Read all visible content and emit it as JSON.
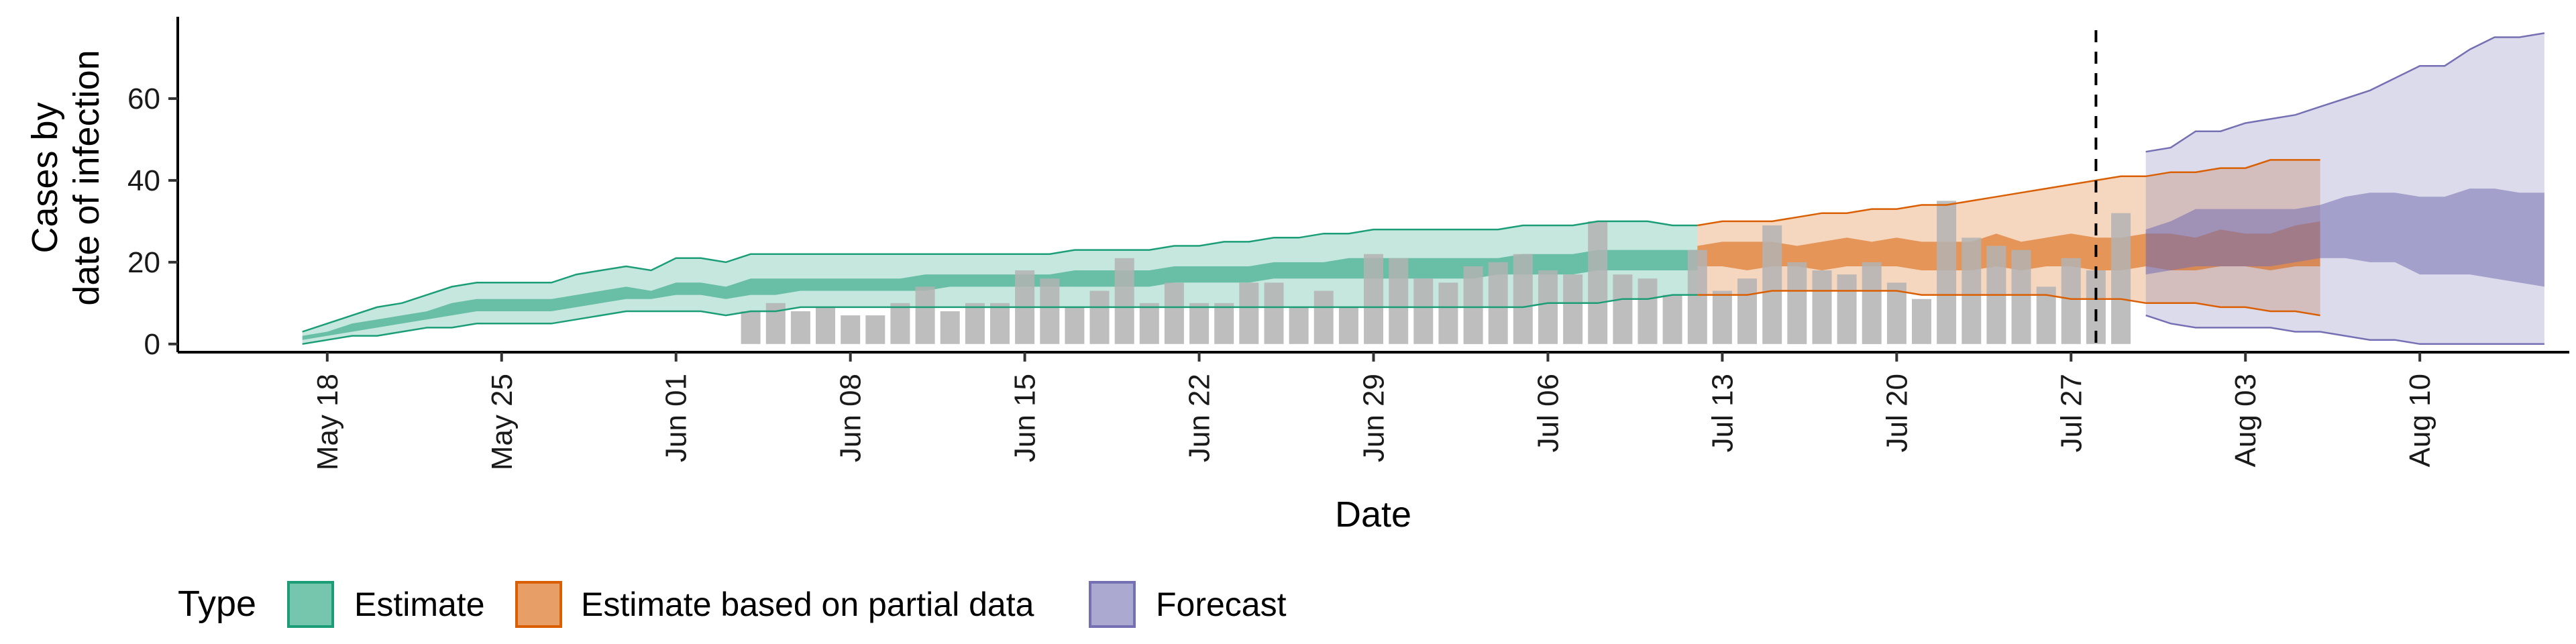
{
  "chart_data": {
    "type": "area",
    "xlabel": "Date",
    "ylabel_lines": [
      "Cases by",
      "date of infection"
    ],
    "ylim": [
      -2,
      80
    ],
    "xlim_days_labels": [
      "May 18",
      "May 25",
      "Jun 01",
      "Jun 08",
      "Jun 15",
      "Jun 22",
      "Jun 29",
      "Jul 06",
      "Jul 13",
      "Jul 20",
      "Jul 27",
      "Aug 03",
      "Aug 10"
    ],
    "x_ticks": [
      "2020-05-18",
      "2020-05-25",
      "2020-06-01",
      "2020-06-08",
      "2020-06-15",
      "2020-06-22",
      "2020-06-29",
      "2020-07-06",
      "2020-07-13",
      "2020-07-20",
      "2020-07-27",
      "2020-08-03",
      "2020-08-10"
    ],
    "y_ticks": [
      0,
      20,
      40,
      60
    ],
    "x_range": [
      "2020-05-12",
      "2020-08-16"
    ],
    "forecast_boundary": "2020-07-28",
    "legend": {
      "title": "Type",
      "position": "bottom",
      "items": [
        {
          "label": "Estimate",
          "color": "#1b9e77"
        },
        {
          "label": "Estimate based on partial data",
          "color": "#d95f02"
        },
        {
          "label": "Forecast",
          "color": "#7570b3"
        }
      ]
    },
    "observed_cases": {
      "color": "#b3b3b3",
      "points": [
        {
          "date": "2020-06-04",
          "value": 8
        },
        {
          "date": "2020-06-05",
          "value": 10
        },
        {
          "date": "2020-06-06",
          "value": 8
        },
        {
          "date": "2020-06-07",
          "value": 9
        },
        {
          "date": "2020-06-08",
          "value": 7
        },
        {
          "date": "2020-06-09",
          "value": 7
        },
        {
          "date": "2020-06-10",
          "value": 10
        },
        {
          "date": "2020-06-11",
          "value": 14
        },
        {
          "date": "2020-06-12",
          "value": 8
        },
        {
          "date": "2020-06-13",
          "value": 10
        },
        {
          "date": "2020-06-14",
          "value": 10
        },
        {
          "date": "2020-06-15",
          "value": 18
        },
        {
          "date": "2020-06-16",
          "value": 16
        },
        {
          "date": "2020-06-17",
          "value": 9
        },
        {
          "date": "2020-06-18",
          "value": 13
        },
        {
          "date": "2020-06-19",
          "value": 21
        },
        {
          "date": "2020-06-20",
          "value": 10
        },
        {
          "date": "2020-06-21",
          "value": 15
        },
        {
          "date": "2020-06-22",
          "value": 10
        },
        {
          "date": "2020-06-23",
          "value": 10
        },
        {
          "date": "2020-06-24",
          "value": 15
        },
        {
          "date": "2020-06-25",
          "value": 15
        },
        {
          "date": "2020-06-26",
          "value": 9
        },
        {
          "date": "2020-06-27",
          "value": 13
        },
        {
          "date": "2020-06-28",
          "value": 9
        },
        {
          "date": "2020-06-29",
          "value": 22
        },
        {
          "date": "2020-06-30",
          "value": 21
        },
        {
          "date": "2020-07-01",
          "value": 16
        },
        {
          "date": "2020-07-02",
          "value": 15
        },
        {
          "date": "2020-07-03",
          "value": 19
        },
        {
          "date": "2020-07-04",
          "value": 20
        },
        {
          "date": "2020-07-05",
          "value": 22
        },
        {
          "date": "2020-07-06",
          "value": 18
        },
        {
          "date": "2020-07-07",
          "value": 17
        },
        {
          "date": "2020-07-08",
          "value": 30
        },
        {
          "date": "2020-07-09",
          "value": 17
        },
        {
          "date": "2020-07-10",
          "value": 16
        },
        {
          "date": "2020-07-11",
          "value": 12
        },
        {
          "date": "2020-07-12",
          "value": 23
        },
        {
          "date": "2020-07-13",
          "value": 13
        },
        {
          "date": "2020-07-14",
          "value": 16
        },
        {
          "date": "2020-07-15",
          "value": 29
        },
        {
          "date": "2020-07-16",
          "value": 20
        },
        {
          "date": "2020-07-17",
          "value": 18
        },
        {
          "date": "2020-07-18",
          "value": 17
        },
        {
          "date": "2020-07-19",
          "value": 20
        },
        {
          "date": "2020-07-20",
          "value": 15
        },
        {
          "date": "2020-07-21",
          "value": 11
        },
        {
          "date": "2020-07-22",
          "value": 35
        },
        {
          "date": "2020-07-23",
          "value": 26
        },
        {
          "date": "2020-07-24",
          "value": 24
        },
        {
          "date": "2020-07-25",
          "value": 23
        },
        {
          "date": "2020-07-26",
          "value": 14
        },
        {
          "date": "2020-07-27",
          "value": 21
        },
        {
          "date": "2020-07-28",
          "value": 18
        },
        {
          "date": "2020-07-29",
          "value": 32
        }
      ]
    },
    "series": [
      {
        "name": "Estimate",
        "color": "#1b9e77",
        "start_date": "2020-05-17",
        "outer_lower": [
          0,
          1,
          2,
          2,
          3,
          4,
          4,
          5,
          5,
          5,
          5,
          6,
          7,
          8,
          8,
          8,
          8,
          7,
          8,
          8,
          9,
          9,
          9,
          9,
          9,
          9,
          9,
          9,
          9,
          9,
          9,
          9,
          9,
          9,
          9,
          9,
          9,
          9,
          9,
          9,
          9,
          9,
          9,
          9,
          9,
          9,
          9,
          9,
          9,
          9,
          10,
          10,
          10,
          11,
          11,
          12,
          12
        ],
        "outer_upper": [
          3,
          5,
          7,
          9,
          10,
          12,
          14,
          15,
          15,
          15,
          15,
          17,
          18,
          19,
          18,
          21,
          21,
          20,
          22,
          22,
          22,
          22,
          22,
          22,
          22,
          22,
          22,
          22,
          22,
          22,
          22,
          23,
          23,
          23,
          23,
          24,
          24,
          25,
          25,
          26,
          26,
          27,
          27,
          28,
          28,
          28,
          28,
          28,
          28,
          29,
          29,
          29,
          30,
          30,
          30,
          29,
          29
        ],
        "inner_lower": [
          1,
          2,
          3,
          4,
          5,
          6,
          7,
          8,
          8,
          8,
          8,
          9,
          10,
          11,
          11,
          12,
          12,
          11,
          12,
          12,
          13,
          13,
          13,
          13,
          13,
          13,
          14,
          14,
          14,
          14,
          14,
          14,
          14,
          14,
          14,
          15,
          15,
          15,
          15,
          16,
          16,
          16,
          16,
          16,
          16,
          16,
          16,
          16,
          17,
          17,
          17,
          17,
          18,
          18,
          18,
          18,
          18
        ],
        "inner_upper": [
          2,
          3,
          5,
          6,
          7,
          8,
          10,
          11,
          11,
          11,
          11,
          12,
          13,
          14,
          13,
          15,
          15,
          14,
          16,
          16,
          16,
          16,
          16,
          16,
          16,
          17,
          17,
          17,
          17,
          17,
          17,
          18,
          18,
          18,
          18,
          19,
          19,
          19,
          19,
          20,
          20,
          20,
          21,
          21,
          21,
          21,
          21,
          21,
          21,
          22,
          22,
          22,
          23,
          23,
          23,
          23,
          23
        ]
      },
      {
        "name": "Estimate based on partial data",
        "color": "#d95f02",
        "start_date": "2020-07-12",
        "outer_lower": [
          12,
          12,
          12,
          13,
          13,
          13,
          13,
          13,
          13,
          12,
          12,
          12,
          12,
          12,
          12,
          11,
          11,
          11,
          10,
          10,
          10,
          9,
          9,
          8,
          8,
          7
        ],
        "outer_upper": [
          29,
          30,
          30,
          30,
          31,
          32,
          32,
          33,
          33,
          34,
          34,
          35,
          36,
          37,
          38,
          39,
          40,
          41,
          41,
          42,
          42,
          43,
          43,
          45,
          45,
          45
        ],
        "inner_lower": [
          19,
          19,
          18,
          19,
          19,
          18,
          19,
          19,
          19,
          18,
          18,
          18,
          19,
          18,
          19,
          19,
          18,
          18,
          19,
          18,
          18,
          19,
          19,
          18,
          19,
          19
        ],
        "inner_upper": [
          24,
          25,
          25,
          25,
          24,
          25,
          26,
          25,
          26,
          25,
          25,
          25,
          27,
          25,
          26,
          27,
          26,
          26,
          27,
          27,
          26,
          28,
          27,
          27,
          29,
          30
        ]
      },
      {
        "name": "Forecast",
        "color": "#7570b3",
        "start_date": "2020-07-30",
        "outer_lower": [
          7,
          5,
          4,
          4,
          4,
          4,
          3,
          3,
          2,
          1,
          1,
          0,
          0,
          0,
          0,
          0,
          0
        ],
        "outer_upper": [
          47,
          48,
          52,
          52,
          54,
          55,
          56,
          58,
          60,
          62,
          65,
          68,
          68,
          72,
          75,
          75,
          76
        ],
        "inner_lower": [
          17,
          18,
          19,
          19,
          19,
          19,
          20,
          21,
          21,
          20,
          20,
          17,
          17,
          17,
          16,
          15,
          14
        ],
        "inner_upper": [
          28,
          30,
          33,
          33,
          33,
          33,
          33,
          34,
          36,
          37,
          37,
          36,
          36,
          38,
          38,
          37,
          37
        ]
      }
    ]
  }
}
